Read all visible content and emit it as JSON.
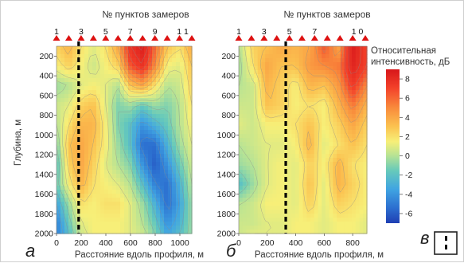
{
  "figure": {
    "colors": {
      "marker": "#dd1111",
      "dashed_line": "#000000",
      "contour": "#8a8a8a"
    },
    "legend": {
      "title_line1": "Относительная",
      "title_line2": "интенсивность, дБ",
      "ticks": [
        "8",
        "6",
        "4",
        "2",
        "0",
        "-2",
        "-4",
        "-6"
      ],
      "range": [
        -7,
        9
      ]
    },
    "panel_v_label": "в",
    "icon": "dashed-line-key-icon"
  },
  "chart_data": [
    {
      "type": "heatmap",
      "panel_label": "а",
      "top_title": "№ пунктов замеров",
      "point_labels": [
        "1",
        "3",
        "5",
        "7",
        "9",
        "1 1"
      ],
      "marker_x": [
        0,
        100,
        200,
        300,
        400,
        500,
        600,
        700,
        800,
        900,
        1000,
        1100
      ],
      "xlabel": "Расстояние вдоль профиля, м",
      "ylabel": "Глубина, м",
      "xlim": [
        0,
        1100
      ],
      "ylim": [
        2000,
        100
      ],
      "x_ticks": [
        "0",
        "200",
        "400",
        "600",
        "800",
        "1000"
      ],
      "y_ticks": [
        "200",
        "400",
        "600",
        "800",
        "1000",
        "1200",
        "1400",
        "1600",
        "1800",
        "2000"
      ],
      "dashed_line_x": 180,
      "x_grid": [
        0,
        100,
        200,
        300,
        400,
        500,
        600,
        700,
        800,
        900,
        1000,
        1100
      ],
      "depth_grid": [
        100,
        300,
        500,
        700,
        900,
        1100,
        1300,
        1500,
        1700,
        1900,
        2000
      ],
      "values": [
        [
          1.5,
          2.5,
          1.0,
          0.0,
          1.0,
          3.0,
          7.0,
          8.5,
          5.0,
          2.0,
          1.0,
          3.0
        ],
        [
          0.5,
          1.5,
          0.5,
          -0.5,
          0.5,
          1.5,
          5.5,
          7.0,
          4.0,
          0.5,
          0.0,
          2.0
        ],
        [
          -1.5,
          -1.0,
          0.0,
          0.5,
          0.0,
          -1.0,
          2.0,
          3.0,
          1.0,
          -1.0,
          -0.5,
          1.5
        ],
        [
          -0.5,
          0.0,
          1.5,
          2.0,
          0.0,
          -2.0,
          -1.5,
          -2.5,
          -1.5,
          -2.0,
          -1.0,
          1.0
        ],
        [
          -1.0,
          1.0,
          2.5,
          2.5,
          0.5,
          -2.0,
          -3.0,
          -4.5,
          -3.5,
          -2.5,
          -1.0,
          0.5
        ],
        [
          -2.0,
          2.0,
          3.0,
          2.0,
          0.5,
          -1.5,
          -3.0,
          -5.5,
          -5.5,
          -3.5,
          -1.5,
          0.0
        ],
        [
          -3.0,
          1.5,
          3.0,
          1.5,
          0.0,
          -1.0,
          -2.0,
          -4.5,
          -6.0,
          -4.5,
          -2.5,
          -0.5
        ],
        [
          -2.5,
          0.5,
          2.5,
          1.0,
          0.5,
          0.0,
          -1.0,
          -3.0,
          -5.0,
          -5.5,
          -3.5,
          -1.0
        ],
        [
          -4.0,
          -1.5,
          1.0,
          0.5,
          1.0,
          1.0,
          0.0,
          -1.5,
          -3.5,
          -5.5,
          -4.0,
          -1.5
        ],
        [
          -5.0,
          -2.5,
          0.0,
          0.5,
          0.5,
          0.5,
          0.0,
          -1.0,
          -2.5,
          -4.5,
          -3.5,
          -1.5
        ],
        [
          -5.0,
          -3.0,
          -0.5,
          0.5,
          0.5,
          0.5,
          0.0,
          -0.5,
          -2.0,
          -4.0,
          -3.0,
          -1.5
        ]
      ]
    },
    {
      "type": "heatmap",
      "panel_label": "б",
      "top_title": "№ пунктов замеров",
      "point_labels": [
        "1",
        "3",
        "5",
        "7",
        "1 0"
      ],
      "marker_x": [
        0,
        89,
        178,
        267,
        356,
        444,
        533,
        622,
        711,
        800,
        889
      ],
      "xlabel": "Расстояние вдоль профиля, м",
      "ylabel": "",
      "xlim": [
        0,
        900
      ],
      "ylim": [
        2000,
        100
      ],
      "x_ticks": [
        "0",
        "200",
        "400",
        "600",
        "800"
      ],
      "y_ticks": [
        "200",
        "400",
        "600",
        "800",
        "1000",
        "1200",
        "1400",
        "1600",
        "1800",
        "2000"
      ],
      "dashed_line_x": 330,
      "x_grid": [
        0,
        100,
        200,
        300,
        400,
        500,
        600,
        700,
        800,
        900
      ],
      "depth_grid": [
        100,
        300,
        500,
        700,
        900,
        1100,
        1300,
        1500,
        1700,
        1900,
        2000
      ],
      "values": [
        [
          -1.0,
          1.5,
          2.0,
          3.0,
          2.5,
          3.0,
          5.5,
          3.0,
          8.5,
          6.0
        ],
        [
          -1.5,
          1.0,
          3.0,
          2.0,
          2.0,
          3.5,
          4.0,
          4.5,
          8.0,
          6.0
        ],
        [
          -1.0,
          -0.5,
          2.5,
          1.5,
          0.5,
          2.5,
          2.0,
          3.5,
          6.5,
          4.0
        ],
        [
          -0.5,
          -0.5,
          2.0,
          1.5,
          0.5,
          1.0,
          0.5,
          2.5,
          4.5,
          2.5
        ],
        [
          0.0,
          -0.5,
          0.5,
          0.5,
          1.0,
          2.0,
          0.5,
          1.5,
          3.0,
          1.5
        ],
        [
          -1.0,
          -0.5,
          0.0,
          0.0,
          0.5,
          2.5,
          0.0,
          1.0,
          2.0,
          1.0
        ],
        [
          -1.5,
          -1.0,
          0.0,
          0.5,
          0.0,
          1.5,
          0.5,
          2.5,
          1.0,
          0.5
        ],
        [
          -3.0,
          -1.5,
          0.0,
          0.5,
          0.0,
          2.0,
          0.0,
          2.5,
          1.5,
          0.5
        ],
        [
          -1.0,
          -0.5,
          0.5,
          0.5,
          0.0,
          1.5,
          0.0,
          1.5,
          1.0,
          0.5
        ],
        [
          -0.5,
          -0.5,
          0.0,
          0.0,
          0.5,
          0.5,
          0.0,
          0.5,
          0.5,
          0.0
        ],
        [
          -0.5,
          0.0,
          0.0,
          0.0,
          0.5,
          0.5,
          0.0,
          0.5,
          0.5,
          0.0
        ]
      ]
    }
  ]
}
